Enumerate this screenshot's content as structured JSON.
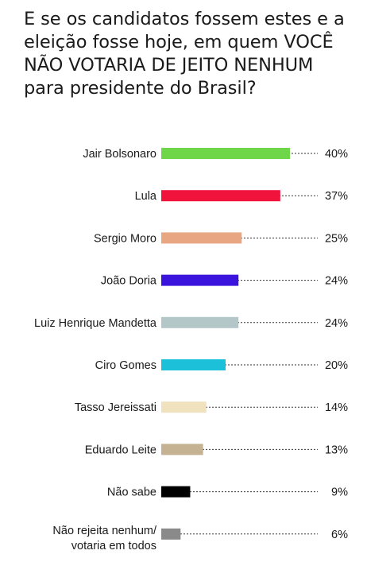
{
  "title": "E se os candidatos fossem estes e a eleição fosse hoje, em quem VOCÊ NÃO VOTARIA DE JEITO NENHUM para presidente do Brasil?",
  "chart_data": {
    "type": "bar",
    "orientation": "horizontal",
    "categories": [
      "Jair Bolsonaro",
      "Lula",
      "Sergio Moro",
      "João Doria",
      "Luiz Henrique Mandetta",
      "Ciro Gomes",
      "Tasso Jereissati",
      "Eduardo Leite",
      "Não sabe",
      [
        "Não rejeita nenhum/",
        "votaria em todos"
      ]
    ],
    "values": [
      40,
      37,
      25,
      24,
      24,
      20,
      14,
      13,
      9,
      6
    ],
    "value_labels": [
      "40%",
      "37%",
      "25%",
      "24%",
      "24%",
      "20%",
      "14%",
      "13%",
      "9%",
      "6%"
    ],
    "colors": [
      "#6fd64a",
      "#f0143c",
      "#e8a682",
      "#3a14dc",
      "#b3c6c8",
      "#1cc0d8",
      "#f0e1bf",
      "#c5b293",
      "#000000",
      "#8a8a8a"
    ],
    "xlim": [
      0,
      40
    ],
    "grid": false,
    "legend": "none"
  }
}
